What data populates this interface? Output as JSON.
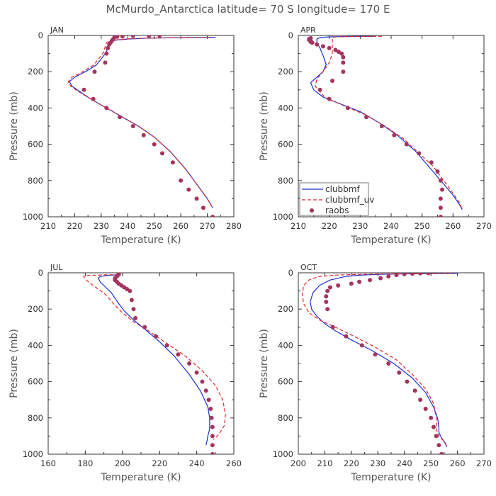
{
  "figure": {
    "title": "McMurdo_Antarctica  latitude= 70 S longitude= 170 E",
    "colors": {
      "clubbmf": "#1d2fd6",
      "clubbmf_uv": "#e0262a",
      "raobs": "#a3345f"
    }
  },
  "chart_data": [
    {
      "type": "line",
      "panel": "JAN",
      "xlabel": "Temperature (K)",
      "ylabel": "Pressure (mb)",
      "xlim": [
        210,
        280
      ],
      "ylim": [
        1000,
        0
      ],
      "xticks": [
        210,
        220,
        230,
        240,
        250,
        260,
        270,
        280
      ],
      "yticks": [
        0,
        200,
        400,
        600,
        800,
        1000
      ],
      "legend": null,
      "series": [
        {
          "name": "clubbmf",
          "style": "solid",
          "x": [
            273,
            260,
            248,
            240,
            236,
            234,
            233,
            232.5,
            232,
            230,
            228,
            224,
            220,
            218,
            219,
            222,
            226,
            232,
            238,
            244,
            250,
            256,
            262,
            266,
            270,
            272
          ],
          "y": [
            10,
            12,
            15,
            20,
            25,
            30,
            40,
            60,
            90,
            130,
            165,
            200,
            230,
            255,
            280,
            310,
            350,
            400,
            450,
            500,
            560,
            640,
            740,
            820,
            900,
            950
          ]
        },
        {
          "name": "clubbmf_uv",
          "style": "dashed",
          "x": [
            271,
            258,
            247,
            239,
            235,
            233,
            232,
            231.5,
            231,
            229,
            227,
            223,
            219,
            217.5,
            218.5,
            221.5,
            226,
            232,
            238,
            244,
            250,
            256,
            262,
            266,
            270,
            272
          ],
          "y": [
            10,
            12,
            15,
            20,
            25,
            30,
            40,
            60,
            90,
            130,
            165,
            200,
            230,
            255,
            280,
            310,
            350,
            400,
            450,
            500,
            560,
            640,
            740,
            820,
            900,
            950
          ]
        },
        {
          "name": "raobs",
          "style": "markers",
          "x": [
            252,
            248,
            242,
            238,
            236,
            235,
            234.5,
            234,
            233.5,
            233,
            232.5,
            232,
            231.5,
            227.5,
            223.5,
            227,
            232,
            237,
            242,
            246,
            250,
            253,
            257,
            260,
            263,
            266,
            268.5,
            272
          ],
          "y": [
            1,
            2,
            3,
            5,
            7,
            10,
            20,
            30,
            40,
            50,
            70,
            100,
            150,
            200,
            300,
            350,
            400,
            450,
            500,
            550,
            600,
            650,
            700,
            800,
            850,
            900,
            950,
            1000
          ]
        }
      ]
    },
    {
      "type": "line",
      "panel": "APR",
      "xlabel": "Temperature (K)",
      "ylabel": "Pressure (mb)",
      "xlim": [
        210,
        270
      ],
      "ylim": [
        1000,
        0
      ],
      "xticks": [
        210,
        220,
        230,
        240,
        250,
        260,
        270
      ],
      "yticks": [
        0,
        200,
        400,
        600,
        800,
        1000
      ],
      "legend": "bottom-left",
      "series": [
        {
          "name": "clubbmf",
          "style": "solid",
          "x": [
            234,
            226,
            220,
            217,
            216,
            216,
            217,
            218,
            219,
            218,
            216,
            214,
            215,
            218,
            224,
            230,
            236,
            242,
            248,
            253,
            257,
            260,
            262,
            263
          ],
          "y": [
            5,
            6,
            8,
            12,
            20,
            40,
            70,
            110,
            160,
            200,
            230,
            260,
            300,
            340,
            380,
            420,
            480,
            550,
            640,
            740,
            820,
            880,
            930,
            960
          ]
        },
        {
          "name": "clubbmf_uv",
          "style": "dashed",
          "x": [
            237,
            228,
            222,
            221,
            221,
            221,
            221,
            220,
            218,
            216,
            215.5,
            218.5,
            225,
            232,
            238,
            244,
            249,
            253.5,
            257,
            260,
            262,
            263
          ],
          "y": [
            5,
            6,
            8,
            12,
            30,
            60,
            100,
            150,
            200,
            240,
            280,
            340,
            390,
            440,
            500,
            570,
            650,
            720,
            800,
            870,
            920,
            960
          ]
        },
        {
          "name": "raobs",
          "style": "markers",
          "x": [
            214,
            213.5,
            213.5,
            214,
            214,
            214.5,
            216,
            218,
            220,
            222,
            223,
            224,
            224.5,
            224.5,
            224.5,
            221,
            217,
            220,
            226,
            232,
            237,
            241,
            245,
            249,
            253,
            255,
            256,
            256.5,
            256,
            256,
            256
          ],
          "y": [
            15,
            20,
            25,
            30,
            35,
            40,
            50,
            60,
            70,
            80,
            90,
            100,
            120,
            150,
            200,
            250,
            300,
            350,
            400,
            450,
            500,
            550,
            600,
            650,
            700,
            750,
            800,
            850,
            900,
            950,
            1000
          ]
        }
      ]
    },
    {
      "type": "line",
      "panel": "JUL",
      "xlabel": "Temperature (K)",
      "ylabel": "Pressure (mb)",
      "xlim": [
        160,
        260
      ],
      "ylim": [
        1000,
        0
      ],
      "xticks": [
        160,
        180,
        200,
        220,
        240,
        260
      ],
      "yticks": [
        0,
        200,
        400,
        600,
        800,
        1000
      ],
      "legend": null,
      "series": [
        {
          "name": "clubbmf",
          "style": "solid",
          "x": [
            198,
            192,
            188,
            187,
            188,
            191,
            194,
            196,
            198,
            201,
            206,
            212,
            220,
            228,
            236,
            242,
            246,
            247,
            247,
            246,
            245.5,
            245
          ],
          "y": [
            10,
            15,
            20,
            30,
            50,
            80,
            110,
            140,
            170,
            210,
            260,
            310,
            380,
            460,
            560,
            650,
            740,
            800,
            860,
            900,
            930,
            950
          ]
        },
        {
          "name": "clubbmf_uv",
          "style": "dashed",
          "x": [
            198,
            188,
            181,
            179,
            180,
            183,
            187,
            191,
            193.5,
            196,
            200,
            206,
            214,
            224,
            234,
            243,
            250,
            254,
            255.5,
            255,
            252,
            249
          ],
          "y": [
            10,
            12,
            15,
            20,
            35,
            60,
            90,
            120,
            150,
            180,
            220,
            270,
            320,
            390,
            460,
            540,
            620,
            700,
            780,
            840,
            890,
            920
          ]
        },
        {
          "name": "raobs",
          "style": "markers",
          "x": [
            198,
            198,
            197,
            196,
            196,
            197,
            198,
            199.5,
            201,
            202.5,
            204,
            205,
            206,
            207,
            212,
            218,
            224,
            230,
            236,
            240,
            243,
            245,
            246.5,
            247.5,
            248,
            248.5,
            248.5,
            248.5,
            248.5
          ],
          "y": [
            5,
            10,
            20,
            30,
            40,
            50,
            60,
            70,
            80,
            90,
            100,
            150,
            200,
            250,
            300,
            350,
            400,
            450,
            500,
            550,
            600,
            650,
            700,
            750,
            800,
            850,
            900,
            950,
            1000
          ]
        }
      ]
    },
    {
      "type": "line",
      "panel": "OCT",
      "xlabel": "Temperature (K)",
      "ylabel": "Pressure (mb)",
      "xlim": [
        200,
        270
      ],
      "ylim": [
        1000,
        0
      ],
      "xticks": [
        200,
        210,
        220,
        230,
        240,
        250,
        260,
        270
      ],
      "yticks": [
        0,
        200,
        400,
        600,
        800,
        1000
      ],
      "legend": null,
      "series": [
        {
          "name": "clubbmf",
          "style": "solid",
          "x": [
            260,
            245,
            232,
            224,
            218,
            212,
            208,
            205.5,
            204.5,
            205,
            207,
            210,
            214,
            220,
            228,
            236,
            243,
            248,
            251,
            252.5,
            253,
            253,
            254,
            255.5,
            256
          ],
          "y": [
            3,
            5,
            8,
            12,
            20,
            40,
            70,
            110,
            160,
            200,
            240,
            280,
            320,
            370,
            430,
            500,
            580,
            660,
            740,
            800,
            850,
            880,
            910,
            940,
            960
          ]
        },
        {
          "name": "clubbmf_uv",
          "style": "dashed",
          "x": [
            258,
            240,
            225,
            215,
            208,
            204,
            202,
            201.5,
            202,
            204,
            208,
            214,
            221,
            229,
            237,
            243,
            248,
            251,
            252,
            252,
            253,
            255,
            256
          ],
          "y": [
            3,
            5,
            8,
            12,
            20,
            40,
            70,
            120,
            170,
            220,
            260,
            300,
            350,
            410,
            480,
            560,
            640,
            720,
            800,
            860,
            900,
            930,
            960
          ]
        },
        {
          "name": "raobs",
          "style": "markers",
          "x": [
            249,
            246,
            243,
            240,
            237,
            234,
            231,
            227,
            223,
            220,
            215,
            212,
            211,
            210.5,
            210.5,
            211,
            213,
            218,
            224,
            229,
            234,
            238,
            241,
            244,
            246,
            248,
            250,
            251,
            252,
            253,
            254,
            254
          ],
          "y": [
            2,
            3,
            5,
            8,
            12,
            20,
            30,
            40,
            50,
            60,
            70,
            80,
            100,
            130,
            160,
            200,
            300,
            350,
            400,
            450,
            500,
            550,
            600,
            650,
            700,
            750,
            800,
            850,
            900,
            950,
            1000,
            1000
          ]
        }
      ]
    }
  ]
}
